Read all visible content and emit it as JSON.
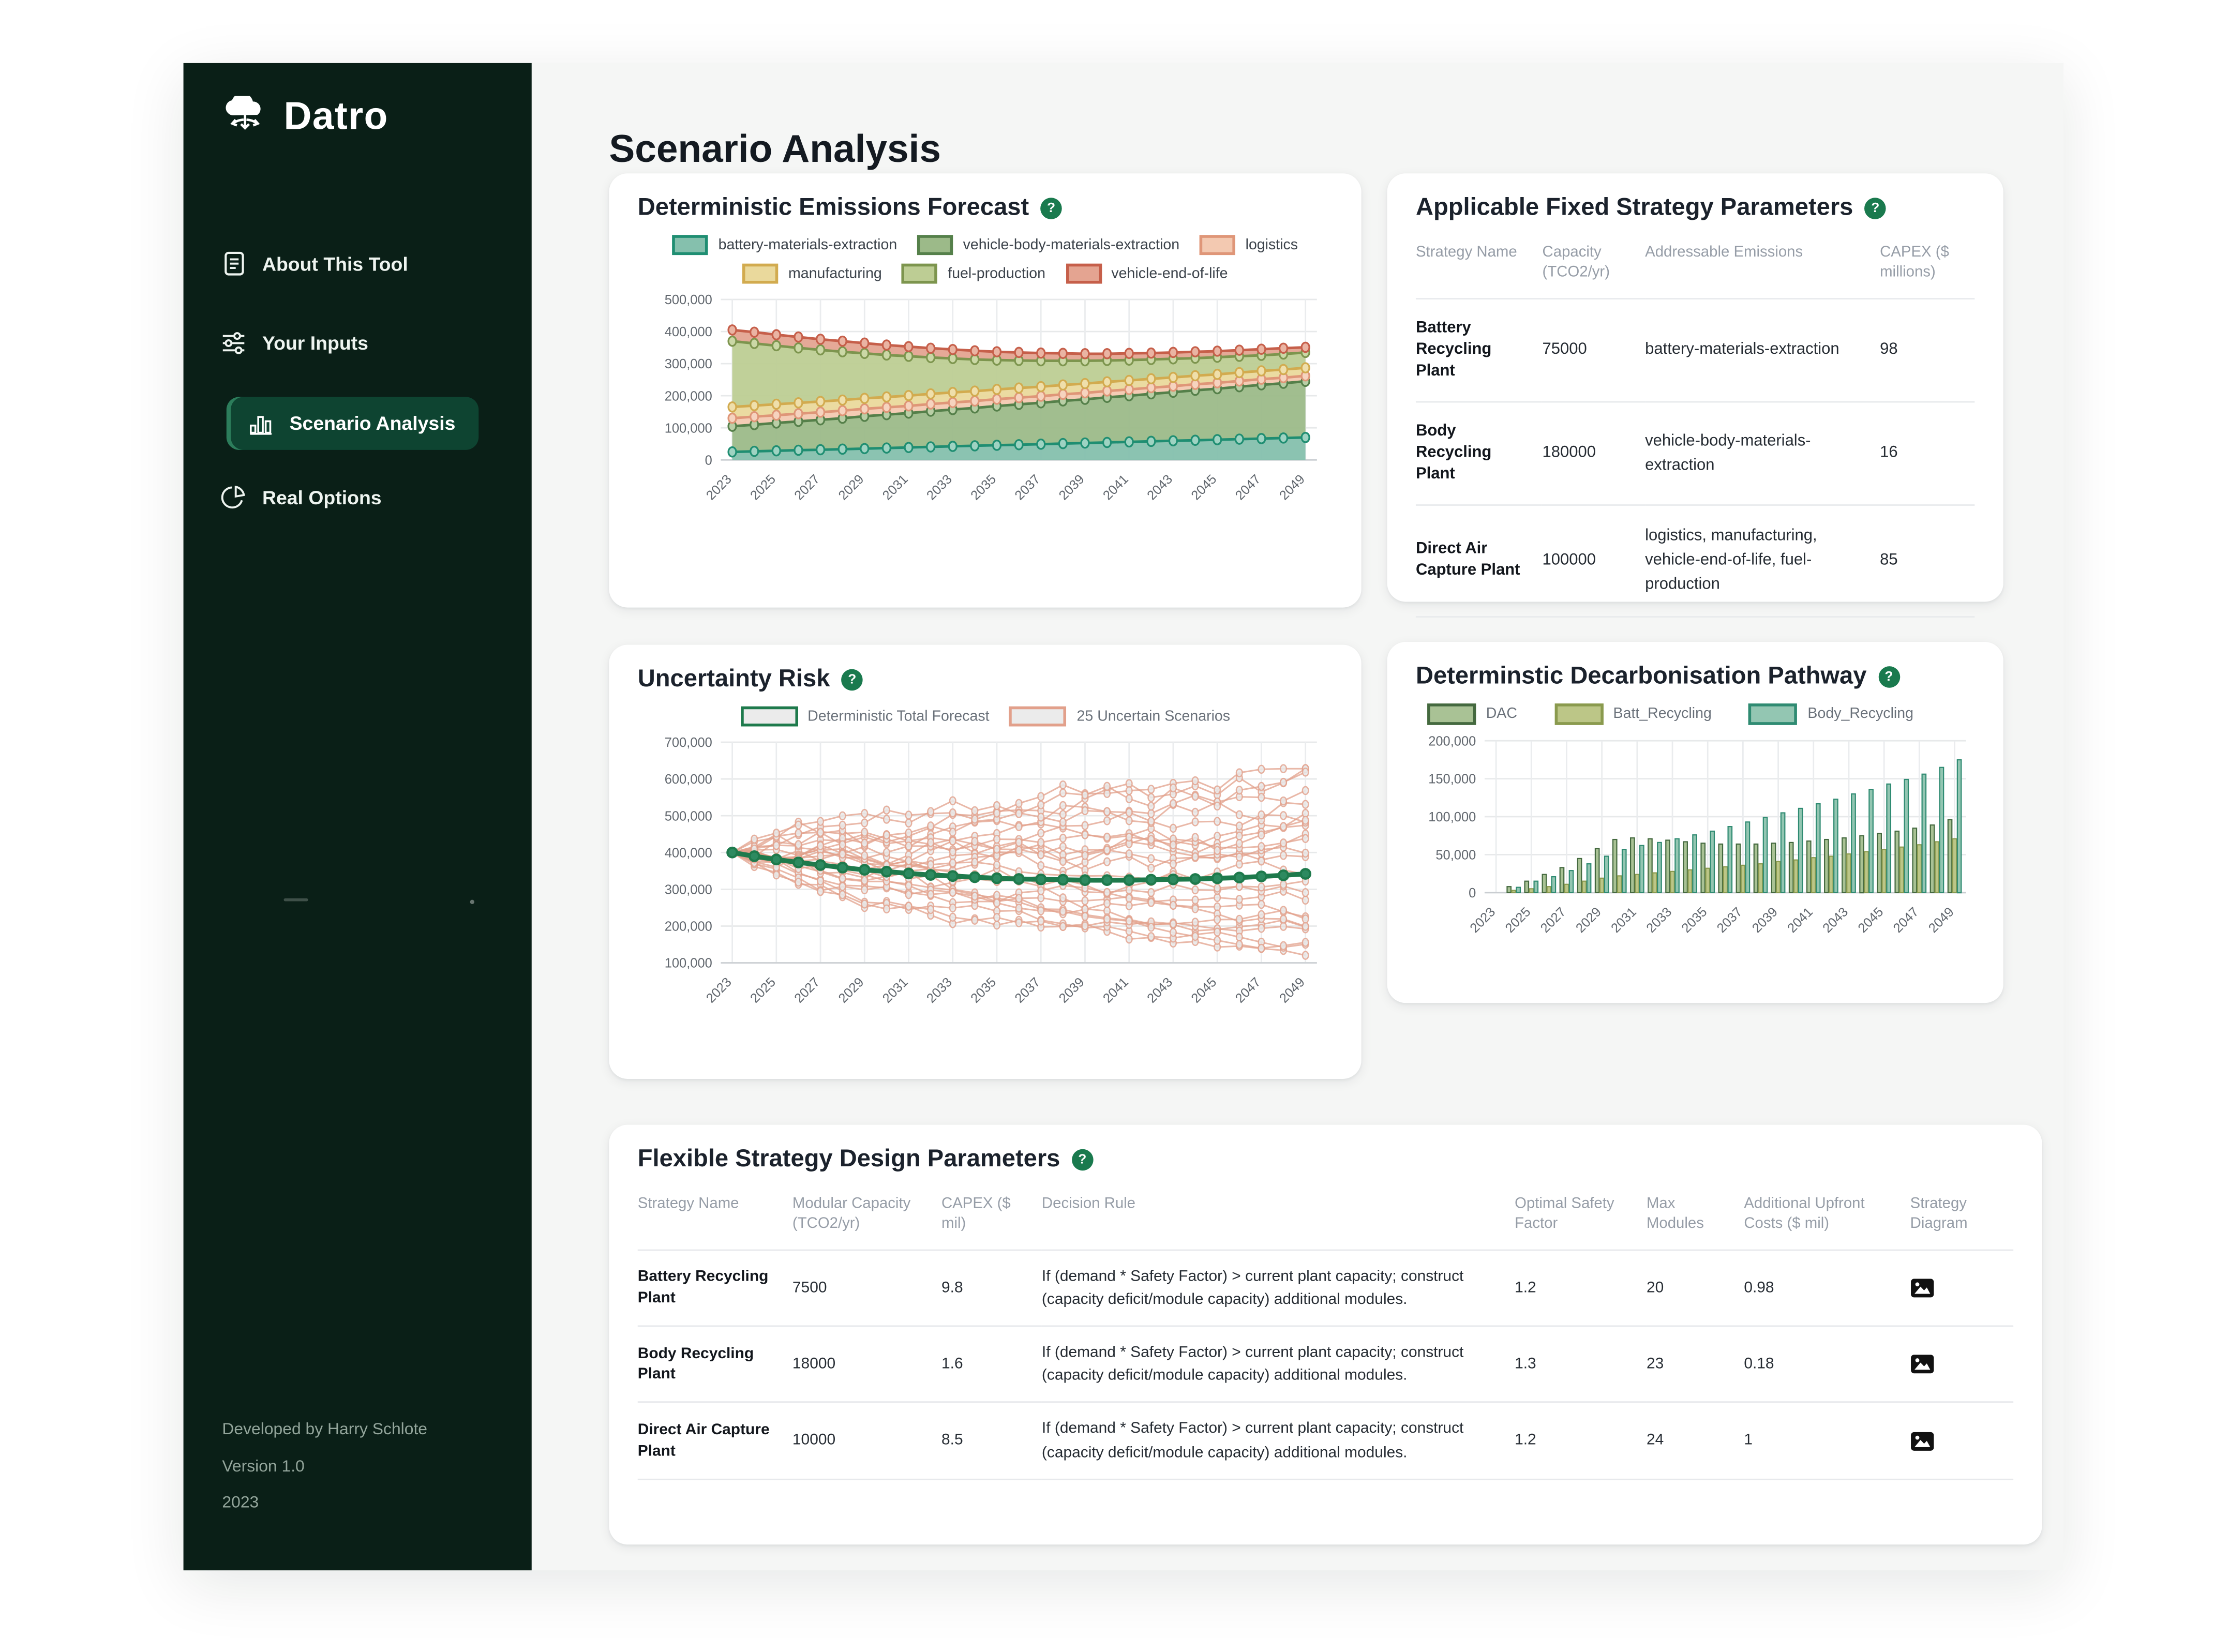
{
  "app": {
    "brand": "Datro",
    "page_title": "Scenario Analysis",
    "help_glyph": "?"
  },
  "sidebar": {
    "items": [
      {
        "label": "About This Tool",
        "icon": "document-icon",
        "active": false
      },
      {
        "label": "Your Inputs",
        "icon": "sliders-icon",
        "active": false
      },
      {
        "label": "Scenario Analysis",
        "icon": "bar-chart-icon",
        "active": true
      },
      {
        "label": "Real Options",
        "icon": "pie-chart-icon",
        "active": false
      }
    ],
    "footer": [
      "Developed by Harry Schlote",
      "Version 1.0",
      "2023"
    ]
  },
  "colors": {
    "sidebar_bg": "#0a1f17",
    "active_pill_bg": "#0e4431",
    "active_pill_accent": "#2c7d5b",
    "badge_green": "#1a7a4e",
    "main_bg": "#f5f6f5",
    "card_bg": "#ffffff",
    "grid_line": "#e7e9ea",
    "axis_text": "#61676e"
  },
  "cards": {
    "forecast": {
      "title": "Deterministic Emissions Forecast"
    },
    "fixed": {
      "title": "Applicable Fixed Strategy Parameters",
      "columns": [
        "Strategy Name",
        "Capacity (TCO2/yr)",
        "Addressable Emissions",
        "CAPEX ($ millions)"
      ],
      "rows": [
        {
          "name": "Battery Recycling Plant",
          "capacity": "75000",
          "emissions": "battery-materials-extraction",
          "capex": "98"
        },
        {
          "name": "Body Recycling Plant",
          "capacity": "180000",
          "emissions": "vehicle-body-materials-extraction",
          "capex": "16"
        },
        {
          "name": "Direct Air Capture Plant",
          "capacity": "100000",
          "emissions": "logistics, manufacturing, vehicle-end-of-life, fuel-production",
          "capex": "85"
        }
      ]
    },
    "uncertainty": {
      "title": "Uncertainty Risk"
    },
    "pathway": {
      "title": "Determinstic Decarbonisation Pathway"
    },
    "flexible": {
      "title": "Flexible Strategy Design Parameters",
      "columns": [
        "Strategy Name",
        "Modular Capacity (TCO2/yr)",
        "CAPEX ($ mil)",
        "Decision Rule",
        "Optimal Safety Factor",
        "Max Modules",
        "Additional Upfront Costs ($ mil)",
        "Strategy Diagram"
      ],
      "rows": [
        {
          "name": "Battery Recycling Plant",
          "modular_capacity": "7500",
          "capex": "9.8",
          "decision_rule": "If (demand * Safety Factor) > current plant capacity; construct (capacity deficit/module capacity) additional modules.",
          "safety_factor": "1.2",
          "max_modules": "20",
          "upfront": "0.98",
          "diagram": "image-icon"
        },
        {
          "name": "Body Recycling Plant",
          "modular_capacity": "18000",
          "capex": "1.6",
          "decision_rule": "If (demand * Safety Factor) > current plant capacity; construct (capacity deficit/module capacity) additional modules.",
          "safety_factor": "1.3",
          "max_modules": "23",
          "upfront": "0.18",
          "diagram": "image-icon"
        },
        {
          "name": "Direct Air Capture Plant",
          "modular_capacity": "10000",
          "capex": "8.5",
          "decision_rule": "If (demand * Safety Factor) > current plant capacity; construct (capacity deficit/module capacity) additional modules.",
          "safety_factor": "1.2",
          "max_modules": "24",
          "upfront": "1",
          "diagram": "image-icon"
        }
      ]
    }
  },
  "chart_data": [
    {
      "id": "emissions_forecast",
      "type": "area",
      "stacked": true,
      "title": "Deterministic Emissions Forecast",
      "x": [
        2023,
        2024,
        2025,
        2026,
        2027,
        2028,
        2029,
        2030,
        2031,
        2032,
        2033,
        2034,
        2035,
        2036,
        2037,
        2038,
        2039,
        2040,
        2041,
        2042,
        2043,
        2044,
        2045,
        2046,
        2047,
        2048,
        2049
      ],
      "x_tick_years": [
        2023,
        2025,
        2027,
        2029,
        2031,
        2033,
        2035,
        2037,
        2039,
        2041,
        2043,
        2045,
        2047,
        2049
      ],
      "ylim": [
        0,
        500000
      ],
      "y_ticks": [
        0,
        100000,
        200000,
        300000,
        400000,
        500000
      ],
      "values_are": "stacked cumulative line positions (TCO2/yr)",
      "series": [
        {
          "name": "battery-materials-extraction",
          "fill": "#85c0ad",
          "line": "#1f8e72",
          "marker": "#9ed3c2",
          "values": [
            25000,
            26700,
            28500,
            30200,
            31900,
            33700,
            35400,
            37100,
            38800,
            40600,
            42300,
            44000,
            45800,
            47500,
            49200,
            51000,
            52700,
            54400,
            56200,
            57900,
            59600,
            61300,
            63100,
            64800,
            66500,
            68300,
            70000
          ]
        },
        {
          "name": "vehicle-body-materials-extraction",
          "fill": "#9cba89",
          "line": "#55804a",
          "marker": "#b9cfa6",
          "values": [
            105000,
            110000,
            115000,
            120000,
            125000,
            130000,
            136000,
            141000,
            146000,
            152000,
            157000,
            162000,
            168000,
            173000,
            178000,
            184000,
            189000,
            195000,
            200000,
            206000,
            211000,
            217000,
            222000,
            228000,
            234000,
            239000,
            245000
          ]
        },
        {
          "name": "logistics",
          "fill": "#f3c9b1",
          "line": "#df9678",
          "marker": "#f6d3bf",
          "values": [
            130000,
            134700,
            139400,
            144100,
            148800,
            153500,
            159200,
            163800,
            168500,
            174200,
            178900,
            183600,
            189300,
            194000,
            198700,
            204400,
            209100,
            214800,
            219500,
            225200,
            229800,
            235500,
            240200,
            245900,
            251600,
            256300,
            262000
          ]
        },
        {
          "name": "manufacturing",
          "fill": "#ead99c",
          "line": "#d2ab4f",
          "marker": "#efdfab",
          "values": [
            165000,
            169300,
            173600,
            177900,
            182200,
            186500,
            191800,
            196200,
            200500,
            205800,
            210100,
            214400,
            219700,
            224000,
            228300,
            233600,
            237900,
            243300,
            247600,
            252900,
            257100,
            262400,
            266700,
            272100,
            277400,
            281700,
            287000
          ]
        },
        {
          "name": "fuel-production",
          "fill": "#bdcd94",
          "line": "#7d954e",
          "marker": "#cbd8a6",
          "values": [
            370000,
            363000,
            356000,
            349000,
            343000,
            337000,
            332000,
            327000,
            323000,
            319000,
            316000,
            313000,
            311000,
            310000,
            309000,
            309000,
            309000,
            310000,
            311000,
            313000,
            315000,
            317000,
            320000,
            323000,
            326000,
            330000,
            335000
          ]
        },
        {
          "name": "vehicle-end-of-life",
          "fill": "#e4a491",
          "line": "#c65f4a",
          "marker": "#eab4a3",
          "values": [
            405000,
            398000,
            390000,
            383000,
            376000,
            370000,
            364000,
            358000,
            353000,
            348000,
            344000,
            340000,
            337000,
            335000,
            333000,
            332000,
            331000,
            331000,
            332000,
            333000,
            335000,
            337000,
            339000,
            342000,
            345000,
            348000,
            351000
          ]
        }
      ]
    },
    {
      "id": "uncertainty_risk",
      "type": "line",
      "title": "Uncertainty Risk",
      "x": [
        2023,
        2024,
        2025,
        2026,
        2027,
        2028,
        2029,
        2030,
        2031,
        2032,
        2033,
        2034,
        2035,
        2036,
        2037,
        2038,
        2039,
        2040,
        2041,
        2042,
        2043,
        2044,
        2045,
        2046,
        2047,
        2048,
        2049
      ],
      "x_tick_years": [
        2023,
        2025,
        2027,
        2029,
        2031,
        2033,
        2035,
        2037,
        2039,
        2041,
        2043,
        2045,
        2047,
        2049
      ],
      "ylim": [
        100000,
        700000
      ],
      "y_ticks": [
        100000,
        200000,
        300000,
        400000,
        500000,
        600000,
        700000
      ],
      "deterministic": {
        "name": "Deterministic Total Forecast",
        "color": "#1e7a4c",
        "marker_fill": "#2d8a60",
        "values": [
          400000,
          390000,
          381000,
          373000,
          366000,
          359000,
          353000,
          348000,
          343000,
          339000,
          336000,
          333000,
          330000,
          328000,
          327000,
          326000,
          325000,
          325000,
          325000,
          326000,
          327000,
          328000,
          330000,
          332000,
          335000,
          338000,
          342000
        ]
      },
      "scenarios": {
        "name": "25 Uncertain Scenarios",
        "color": "#e2a08b",
        "marker_fill": "#e9e9e9",
        "count": 25,
        "seed": 11,
        "start": 400000,
        "min": 118000,
        "max": 628000
      },
      "legend": [
        {
          "label": "Deterministic Total Forecast",
          "swatch_fill": "#ebebeb",
          "swatch_border": "#1e7a4c"
        },
        {
          "label": "25 Uncertain Scenarios",
          "swatch_fill": "#ebebeb",
          "swatch_border": "#e2a08b"
        }
      ]
    },
    {
      "id": "decarbonisation_pathway",
      "type": "bar",
      "title": "Determinstic Decarbonisation Pathway",
      "categories": [
        2023,
        2024,
        2025,
        2026,
        2027,
        2028,
        2029,
        2030,
        2031,
        2032,
        2033,
        2034,
        2035,
        2036,
        2037,
        2038,
        2039,
        2040,
        2041,
        2042,
        2043,
        2044,
        2045,
        2046,
        2047,
        2048,
        2049
      ],
      "x_tick_years": [
        2023,
        2025,
        2027,
        2029,
        2031,
        2033,
        2035,
        2037,
        2039,
        2041,
        2043,
        2045,
        2047,
        2049
      ],
      "ylim": [
        0,
        200000
      ],
      "y_ticks": [
        0,
        50000,
        100000,
        150000,
        200000
      ],
      "series": [
        {
          "name": "DAC",
          "fill": "#a9c295",
          "stroke": "#44693f",
          "values": [
            0,
            8000,
            15000,
            24000,
            33000,
            45000,
            58000,
            70000,
            72000,
            71000,
            69000,
            67000,
            65000,
            64000,
            64000,
            64000,
            65000,
            66000,
            68000,
            70000,
            72000,
            75000,
            78000,
            81000,
            85000,
            89000,
            96000
          ]
        },
        {
          "name": "Batt_Recycling",
          "fill": "#bcc687",
          "stroke": "#8a9a4e",
          "values": [
            0,
            3000,
            5000,
            8000,
            11000,
            15000,
            19000,
            22000,
            24000,
            26000,
            28000,
            30000,
            32000,
            34000,
            36000,
            38000,
            41000,
            43000,
            46000,
            48000,
            51000,
            54000,
            57000,
            60000,
            63000,
            67000,
            71000
          ]
        },
        {
          "name": "Body_Recycling",
          "fill": "#93c6b2",
          "stroke": "#2f8b72",
          "values": [
            0,
            7000,
            15000,
            21000,
            29000,
            38000,
            48000,
            57000,
            62000,
            66000,
            71000,
            76000,
            81000,
            87000,
            93000,
            99000,
            105000,
            111000,
            117000,
            123000,
            130000,
            136000,
            143000,
            149000,
            156000,
            165000,
            175000
          ]
        }
      ]
    }
  ]
}
